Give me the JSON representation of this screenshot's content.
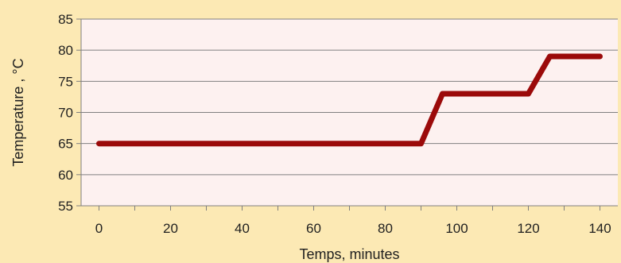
{
  "chart_data": {
    "type": "line",
    "xlabel": "Temps, minutes",
    "ylabel": "Temperature ,  °C",
    "xlim": [
      -5,
      145
    ],
    "ylim": [
      55,
      85
    ],
    "x_ticks": [
      0,
      20,
      40,
      60,
      80,
      100,
      120,
      140
    ],
    "x_minor_step": 10,
    "y_ticks": [
      55,
      60,
      65,
      70,
      75,
      80,
      85
    ],
    "grid": "horizontal",
    "legend": "none",
    "series": [
      {
        "color": "#9b0a0a",
        "x": [
          0,
          90,
          96,
          120,
          126,
          140
        ],
        "y": [
          65,
          65,
          73,
          73,
          79,
          79
        ]
      }
    ],
    "colors": {
      "background": "#fce9b4",
      "plot_area": "#fdf1f0",
      "gridline": "#7f7f7f",
      "line": "#9b0a0a",
      "text": "#1f1f1f"
    }
  }
}
